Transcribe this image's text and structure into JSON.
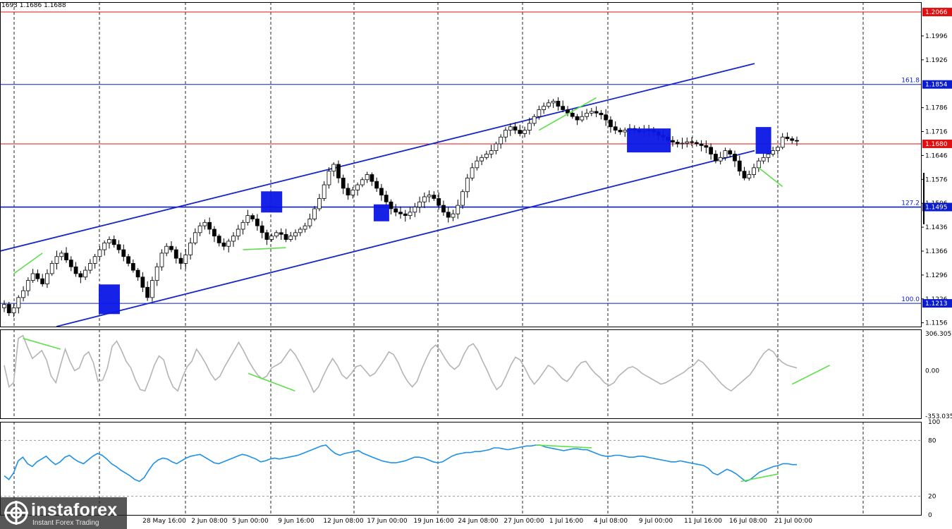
{
  "header": {
    "ohlc_text": "1693 1.1686 1.1688"
  },
  "brand": {
    "name": "instaforex",
    "tagline": "Instant Forex Trading"
  },
  "chart_data": [
    {
      "type": "candlestick",
      "panel": "price",
      "yticks": [
        "1.2066",
        "1.1996",
        "1.1926",
        "1.1854",
        "1.1786",
        "1.1716",
        "1.1680",
        "1.1646",
        "1.1576",
        "1.1506",
        "1.1495",
        "1.1436",
        "1.1366",
        "1.1296",
        "1.1226",
        "1.1213",
        "1.1156"
      ],
      "ylim": [
        1.1145,
        1.2095
      ],
      "highlighted_levels": [
        {
          "value": 1.2066,
          "label": "1.2066",
          "color": "#e01010"
        },
        {
          "value": 1.168,
          "label": "1.1680",
          "color": "#e01010"
        },
        {
          "value": 1.1854,
          "label": "1.1854",
          "color": "#0a1ccc",
          "fib": "161.8"
        },
        {
          "value": 1.1495,
          "label": "1.1495",
          "color": "#0a1ccc",
          "fib": "127.2"
        },
        {
          "value": 1.1213,
          "label": "1.1213",
          "color": "#0a1ccc",
          "fib": "100.0"
        }
      ],
      "x_labels": [
        "28 May 16:00",
        "2 Jun 08:00",
        "5 Jun 00:00",
        "9 Jun 16:00",
        "12 Jun 08:00",
        "17 Jun 00:00",
        "19 Jun 16:00",
        "24 Jun 08:00",
        "27 Jun 00:00",
        "1 Jul 16:00",
        "4 Jul 08:00",
        "9 Jul 00:00",
        "11 Jul 16:00",
        "16 Jul 08:00",
        "21 Jul 00:00"
      ],
      "closes": [
        1.121,
        1.1185,
        1.12,
        1.123,
        1.125,
        1.128,
        1.13,
        1.1285,
        1.127,
        1.13,
        1.133,
        1.135,
        1.136,
        1.134,
        1.132,
        1.13,
        1.129,
        1.131,
        1.133,
        1.135,
        1.137,
        1.139,
        1.14,
        1.1385,
        1.137,
        1.135,
        1.133,
        1.131,
        1.129,
        1.126,
        1.123,
        1.128,
        1.132,
        1.136,
        1.138,
        1.137,
        1.1345,
        1.133,
        1.1355,
        1.139,
        1.142,
        1.144,
        1.145,
        1.143,
        1.141,
        1.139,
        1.138,
        1.1395,
        1.141,
        1.143,
        1.145,
        1.147,
        1.146,
        1.144,
        1.142,
        1.14,
        1.141,
        1.142,
        1.1415,
        1.14,
        1.141,
        1.142,
        1.143,
        1.144,
        1.146,
        1.149,
        1.152,
        1.156,
        1.16,
        1.162,
        1.158,
        1.155,
        1.153,
        1.1545,
        1.156,
        1.1575,
        1.159,
        1.157,
        1.155,
        1.153,
        1.151,
        1.149,
        1.148,
        1.1475,
        1.147,
        1.148,
        1.1495,
        1.151,
        1.1525,
        1.153,
        1.152,
        1.15,
        1.148,
        1.1465,
        1.1475,
        1.15,
        1.154,
        1.158,
        1.161,
        1.163,
        1.164,
        1.165,
        1.166,
        1.168,
        1.17,
        1.172,
        1.173,
        1.172,
        1.171,
        1.172,
        1.174,
        1.176,
        1.178,
        1.179,
        1.18,
        1.1805,
        1.179,
        1.178,
        1.177,
        1.176,
        1.175,
        1.176,
        1.177,
        1.1775,
        1.177,
        1.1765,
        1.175,
        1.173,
        1.172,
        1.1715,
        1.172,
        1.1725,
        1.172,
        1.1715,
        1.1718,
        1.172,
        1.1715,
        1.1705,
        1.17,
        1.169,
        1.1685,
        1.168,
        1.1682,
        1.1686,
        1.1684,
        1.168,
        1.1675,
        1.167,
        1.165,
        1.163,
        1.164,
        1.166,
        1.165,
        1.163,
        1.16,
        1.158,
        1.159,
        1.161,
        1.163,
        1.164,
        1.165,
        1.166,
        1.167,
        1.17,
        1.1695,
        1.169,
        1.1688
      ],
      "series": [
        {
          "name": "",
          "values": []
        }
      ],
      "trend_channel": {
        "upper": [
          [
            0,
            1.1366
          ],
          [
            1070,
            1.1915
          ]
        ],
        "lower": [
          [
            80,
            1.1145
          ],
          [
            1070,
            1.166
          ]
        ]
      },
      "signal_boxes": [
        "swing-low-28-May",
        "resistance-5-Jun",
        "support-12-Jun",
        "consolidation-4-Jul",
        "breakdown-16-Jul"
      ]
    },
    {
      "type": "line",
      "panel": "CCI",
      "yticks": [
        "306.3051",
        "0.00",
        "-353.0350"
      ],
      "ylim": [
        -353.035,
        306.3051
      ],
      "values": [
        40,
        -120,
        -90,
        240,
        260,
        170,
        90,
        120,
        150,
        80,
        -40,
        -90,
        40,
        160,
        70,
        0,
        20,
        110,
        140,
        60,
        -80,
        -70,
        20,
        180,
        220,
        150,
        70,
        20,
        -70,
        -140,
        -150,
        -60,
        40,
        110,
        80,
        -40,
        -120,
        -150,
        -50,
        30,
        70,
        160,
        110,
        50,
        -20,
        -70,
        -40,
        30,
        90,
        150,
        210,
        150,
        80,
        20,
        -30,
        -60,
        -40,
        20,
        40,
        60,
        110,
        160,
        120,
        60,
        -10,
        -80,
        -160,
        -120,
        -40,
        30,
        90,
        40,
        -30,
        -60,
        -20,
        30,
        40,
        0,
        -40,
        -20,
        30,
        80,
        140,
        120,
        60,
        -20,
        -80,
        -120,
        -80,
        10,
        90,
        160,
        190,
        150,
        90,
        40,
        10,
        40,
        120,
        180,
        200,
        150,
        70,
        0,
        -80,
        -140,
        -110,
        -40,
        40,
        100,
        80,
        20,
        -50,
        -100,
        -60,
        -10,
        40,
        20,
        -20,
        -60,
        -80,
        -40,
        20,
        60,
        70,
        20,
        -20,
        -50,
        -90,
        -110,
        -90,
        -40,
        -10,
        20,
        30,
        10,
        -20,
        -40,
        -60,
        -80,
        -100,
        -90,
        -70,
        -50,
        -30,
        -10,
        20,
        40,
        80,
        60,
        20,
        -20,
        -60,
        -100,
        -130,
        -150,
        -120,
        -90,
        -60,
        -30,
        20,
        80,
        130,
        160,
        140,
        90,
        60,
        40,
        30,
        20
      ]
    },
    {
      "type": "line",
      "panel": "RSI",
      "yticks": [
        "100",
        "80",
        "20",
        "0"
      ],
      "ylim": [
        0,
        100
      ],
      "values": [
        42,
        38,
        45,
        58,
        62,
        55,
        52,
        57,
        60,
        63,
        58,
        54,
        57,
        62,
        64,
        60,
        57,
        55,
        59,
        63,
        66,
        64,
        60,
        55,
        52,
        48,
        45,
        42,
        38,
        36,
        40,
        48,
        55,
        59,
        61,
        60,
        57,
        55,
        58,
        61,
        63,
        64,
        65,
        62,
        59,
        56,
        55,
        57,
        59,
        61,
        63,
        65,
        64,
        62,
        60,
        57,
        58,
        60,
        61,
        60,
        61,
        62,
        63,
        64,
        66,
        68,
        70,
        72,
        74,
        75,
        70,
        66,
        64,
        66,
        67,
        68,
        69,
        66,
        64,
        62,
        60,
        58,
        57,
        56,
        56,
        57,
        58,
        60,
        62,
        62,
        61,
        59,
        57,
        56,
        57,
        60,
        63,
        65,
        66,
        67,
        67,
        68,
        68,
        69,
        70,
        72,
        72,
        71,
        70,
        71,
        72,
        73,
        74,
        74,
        75,
        75,
        73,
        72,
        71,
        70,
        69,
        70,
        71,
        71,
        70,
        70,
        68,
        66,
        64,
        63,
        63,
        64,
        64,
        63,
        62,
        62,
        63,
        63,
        62,
        61,
        60,
        59,
        58,
        57,
        57,
        58,
        57,
        56,
        55,
        54,
        53,
        50,
        45,
        43,
        46,
        49,
        47,
        44,
        40,
        36,
        38,
        42,
        46,
        48,
        50,
        52,
        53,
        55,
        55,
        54,
        54
      ]
    }
  ]
}
